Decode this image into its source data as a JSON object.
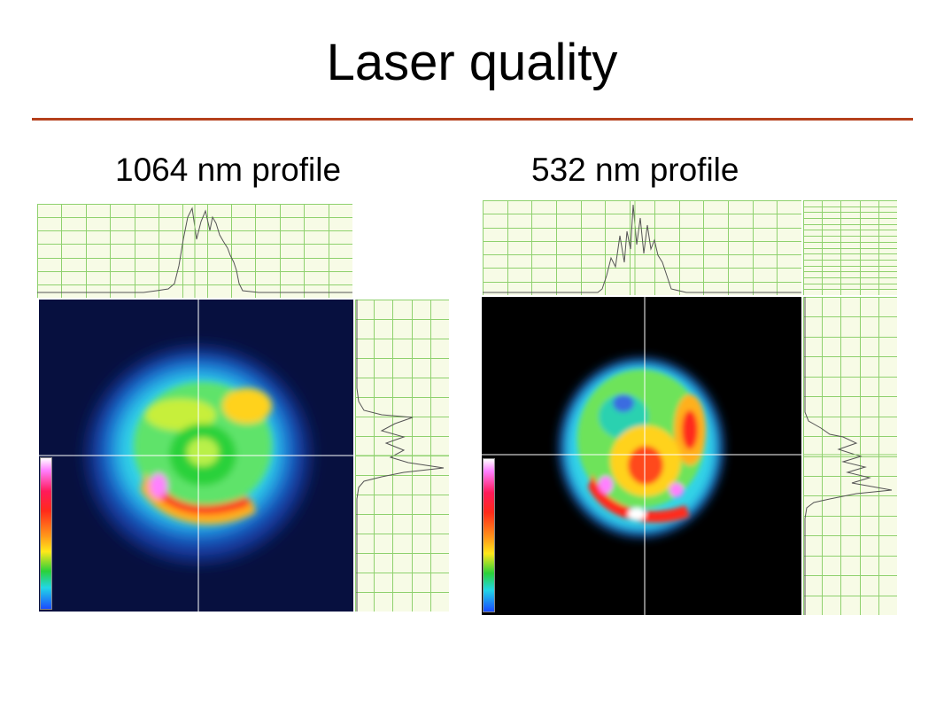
{
  "slide": {
    "title": "Laser quality",
    "accent_color": "#b5401c"
  },
  "panels": [
    {
      "caption": "1064 nm profile",
      "wavelength_nm": 1064
    },
    {
      "caption": "532 nm profile",
      "wavelength_nm": 532
    }
  ],
  "colors": {
    "grid_line": "#8fd16e",
    "plot_background": "#f7fbe6",
    "trace": "#555555",
    "crosshair": "#ffffff",
    "beam_background_left": "#07103f",
    "beam_background_right": "#000000"
  }
}
